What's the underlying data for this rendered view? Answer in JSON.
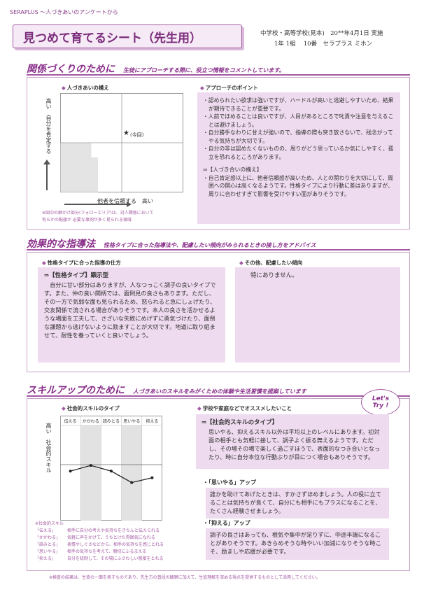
{
  "header": {
    "brand": "SERAPLUS ～人づきあいのアンケートから",
    "title": "見つめて育てるシート（先生用）",
    "meta_line1": "中学校・高等学校(見本)　20**年4月1日 実施",
    "meta_line2": "1年 1組　 10番　セラプラス ミホン"
  },
  "section1": {
    "title": "関係づくりのために",
    "subtitle": "生徒にアプローチする際に、役立つ情報をコメントしています。",
    "stance_heading": "人づきあいの構え",
    "y_axis_label": "高い　自分を肯定する",
    "x_axis_label": "他者を信頼する　高い",
    "marker_label": "★(今回)",
    "note_line1": "※図中の網かけ部分(フォローエリア)は、対人関係において",
    "note_line2": "何らかの配慮が 必要な事例が多く見られる領域",
    "approach_heading": "アプローチのポイント",
    "points": [
      "・認められたい欲求は強いですが、ハードルが高いと逃避しやすいため、結果が期待できることが重要です。",
      "・人前でほめることは良いですが、人目があるところで叱責や注意を与えることは避けましょう。",
      "・自分勝手なわりに甘えが強いので、指導の際も突き放さないで、残念がってやる気持ちが大切です。",
      "・自分の非は認めたくないものの、周りがどう思っているか気にしやすく、孤立を恐れるところがあります。"
    ],
    "stance_block_heading": "⇒【人づき合いの構え】",
    "stance_block_text": "・自己肯定感以上に、他者信頼感が高いため、人との関わりを大切にして、周囲への関心は高くなるようです。性格タイプにより行動に差はありますが、周りに合わせすぎて影響を受けやすい面がありそうです。"
  },
  "section2": {
    "title": "効果的な指導法",
    "subtitle": "性格タイプに合った指導法や、配慮したい傾向がみられるときの接し方をアドバイス",
    "left_heading": "性格タイプに合った指導の仕方",
    "type_heading": "⇒【性格タイプ】顕示型",
    "type_text": "　自分に甘い部分はありますが、人なつっこく調子の良いタイプです。また、仲の良い間柄では、面倒見の良さもあります。ただし、その一方で気弱な面も見られるため、怒られると急にしょげたり、交友関係で流される場合がありそうです。本人の良さを活かせるような場面を工夫して、さざいな失敗にめげずに勇気づけたり、面倒な課題から逃げないように励ますことが大切です。地道に取り組ませて、耐性を養っていくと良いでしょう。",
    "right_heading": "その他、配慮したい傾向",
    "right_text": "特にありません。"
  },
  "section3": {
    "title": "スキルアップのために",
    "subtitle": "人づきあいのスキルをみがくための体験や生活習慣を提案しています",
    "badge": "Let's Try !",
    "chart_heading": "社会的スキルのタイプ",
    "y_label": "高い　社会的スキル",
    "suggest_heading": "学校や家庭などでオススメしたいこと",
    "skill_type_heading": "⇒【社会的スキルのタイプ】",
    "skill_type_text": "思いやる、抑えるスキル以外は平均以上のレベルにあります。初対面の相手とも気軽に接して、調子よく振る舞えるようです。ただし、その場その場で楽しく過ごすほうで、表面的なつき合いとなったり、時に自分本位な行動ぶりが目につく場合もありそうです。",
    "omoiyaru_heading": "・「思いやる」アップ",
    "omoiyaru_text": "誰かを助けてあげたときは、すかさずほめましょう。人の役に立てることは気持ちが良くて、自分にも相手にもプラスになることを、たくさん経験させましょう。",
    "osaeru_heading": "・「抑える」アップ",
    "osaeru_text": "調子の良さはあっても、根気や集中が足りずに、中途半端になることがありそうです。あきらめそうな時やいい加減になりそうな時こそ、励ましや応援が必要です。",
    "legend_title": "※社会的スキル",
    "legend": [
      {
        "key": "「伝える」",
        "text": "相手に自分の考えや気持ちをきちんと伝えられる"
      },
      {
        "key": "「かかわる」",
        "text": "気軽に声をかけて、うちとけた雰囲気になれる"
      },
      {
        "key": "「読みとる」",
        "text": "表情やしぐさなどから、相手の気持ちを感じとれる"
      },
      {
        "key": "「思いやる」",
        "text": "相手の気持ちを考えて、親切にふるまえる"
      },
      {
        "key": "「抑える」",
        "text": "自分を統制して、その場にふさわしい態度をとれる"
      }
    ]
  },
  "footer": "※検査の結果は、生徒の一面を表すものであり、先生方の普段の観察に加えて、生徒理解を深める視点を提供するものとして活用してください。",
  "chart_data": [
    {
      "type": "scatter",
      "title": "人づきあいの構え",
      "xlabel": "他者を信頼する 高い",
      "ylabel": "高い 自分を肯定する",
      "points": [
        {
          "x": 0.6,
          "y": 0.58,
          "label": "★(今回)"
        }
      ]
    },
    {
      "type": "line",
      "title": "社会的スキルのタイプ",
      "categories": [
        "伝える",
        "かかわる",
        "読みとる",
        "思いやる",
        "抑える"
      ],
      "values": [
        0.52,
        0.58,
        0.52,
        0.4,
        0.45
      ],
      "ylabel": "高い 社会的スキル",
      "ylim": [
        0,
        1
      ]
    }
  ],
  "colors": {
    "accent": "#8a2f8a",
    "panel_fill": "#efdbef",
    "border": "#c9a3c9"
  }
}
